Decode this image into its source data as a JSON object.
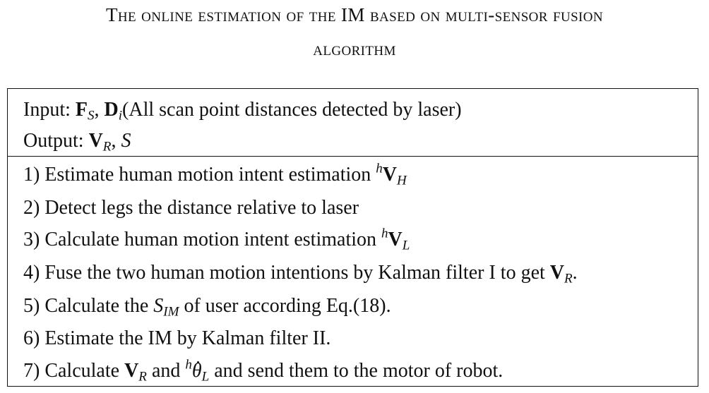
{
  "caption": {
    "line1": "The online estimation of the IM based on multi-sensor fusion",
    "line2": "algorithm"
  },
  "algorithm": {
    "input": {
      "label": "Input:",
      "F": "F",
      "F_sub": "S",
      "sep": ",",
      "D": "D",
      "D_sub": "i",
      "text": "(All scan point distances detected by laser)"
    },
    "output": {
      "label": "Output:",
      "V": "V",
      "V_sub": "R",
      "sep": ",",
      "S": "S"
    },
    "steps": [
      {
        "prefix": "1) Estimate human motion intent estimation",
        "sup": "h",
        "sym": "V",
        "sub": "H",
        "suffix": ""
      },
      {
        "text": "2) Detect legs the distance relative to laser"
      },
      {
        "prefix": "3) Calculate human motion intent estimation",
        "sup": "h",
        "sym": "V",
        "sub": "L",
        "suffix": ""
      },
      {
        "prefix": "4) Fuse the two human motion intentions by Kalman filter I to get",
        "sym": "V",
        "sub": "R",
        "suffix": "."
      },
      {
        "prefix": "5) Calculate the",
        "sym": "S",
        "sub": "IM",
        "suffix": "of user according Eq.(18)."
      },
      {
        "text": "6) Estimate the IM by Kalman filter II."
      },
      {
        "prefix": "7) Calculate",
        "sym": "V",
        "sub": "R",
        "mid": "and",
        "sup": "h",
        "sym2": "θ",
        "sub2": "L",
        "suffix": "and send them to the motor of robot."
      }
    ]
  }
}
